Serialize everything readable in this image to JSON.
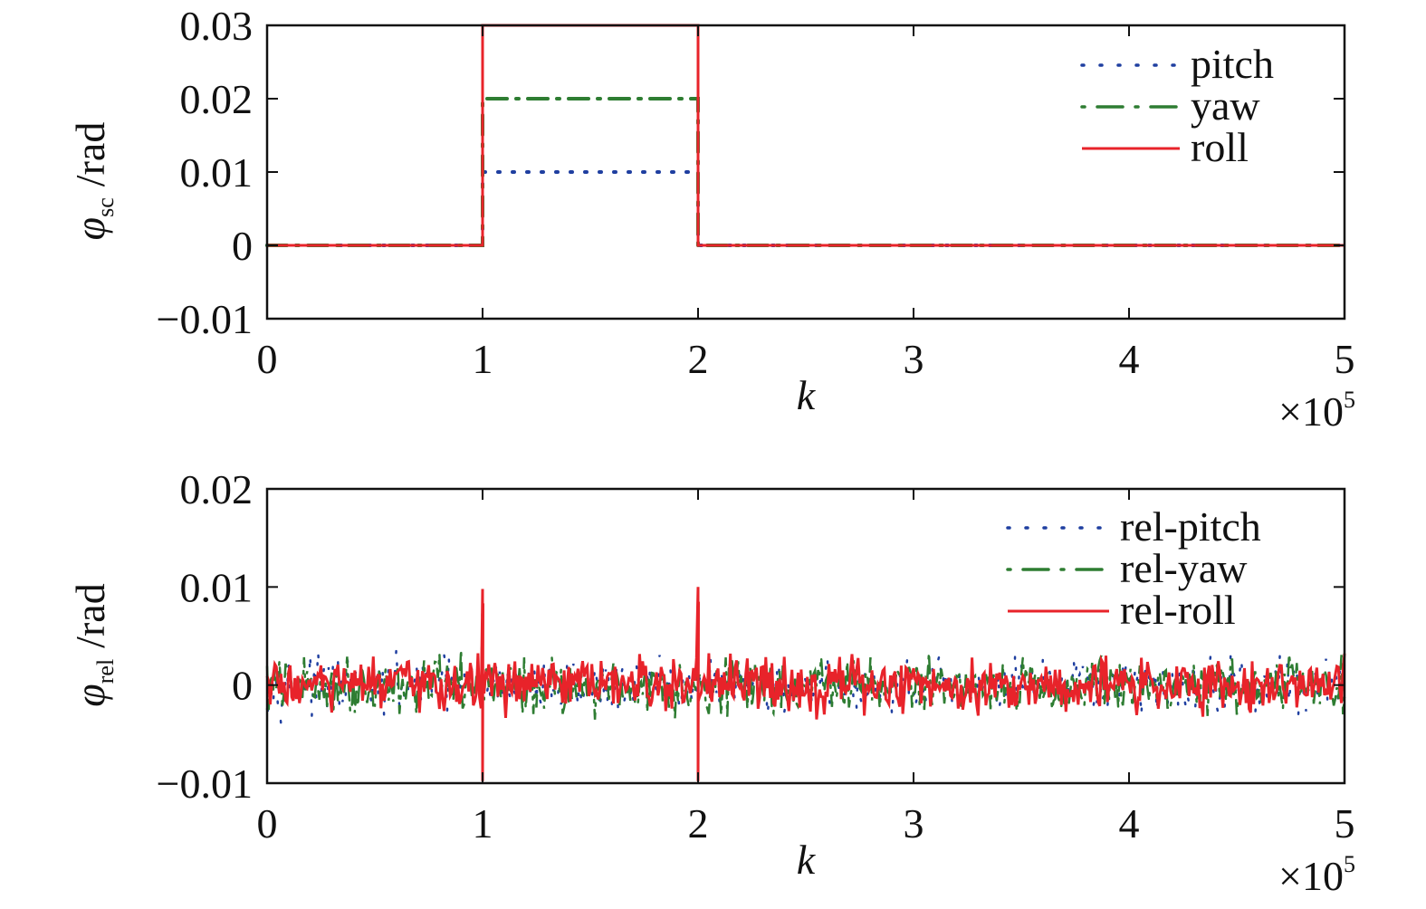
{
  "chart_data": [
    {
      "type": "line",
      "xlabel": "k",
      "x_multiplier": "×10",
      "x_multiplier_exp": "5",
      "ylabel_symbol": "φ",
      "ylabel_sub": "sc",
      "ylabel_unit": "/rad",
      "xlim": [
        0,
        5
      ],
      "ylim": [
        -0.01,
        0.03
      ],
      "xticks": [
        "0",
        "1",
        "2",
        "3",
        "4",
        "5"
      ],
      "yticks": [
        "−0.01",
        "0",
        "0.01",
        "0.02",
        "0.03"
      ],
      "ytick_values": [
        -0.01,
        0,
        0.01,
        0.02,
        0.03
      ],
      "legend_position": "top-right",
      "series": [
        {
          "name": "pitch",
          "style": "dotted",
          "color": "#1f3fa0",
          "x": [
            0,
            1,
            1,
            2,
            2,
            5
          ],
          "y": [
            0,
            0,
            0.01,
            0.01,
            0,
            0
          ]
        },
        {
          "name": "yaw",
          "style": "dashdot",
          "color": "#2e7d32",
          "x": [
            0,
            1,
            1,
            2,
            2,
            5
          ],
          "y": [
            0,
            0,
            0.02,
            0.02,
            0,
            0
          ]
        },
        {
          "name": "roll",
          "style": "solid",
          "color": "#e8232a",
          "x": [
            0,
            1,
            1,
            2,
            2,
            5
          ],
          "y": [
            0,
            0,
            0.03,
            0.03,
            0,
            0
          ]
        }
      ]
    },
    {
      "type": "line",
      "xlabel": "k",
      "x_multiplier": "×10",
      "x_multiplier_exp": "5",
      "ylabel_symbol": "φ",
      "ylabel_sub": "rel",
      "ylabel_unit": "/rad",
      "xlim": [
        0,
        5
      ],
      "ylim": [
        -0.01,
        0.02
      ],
      "xticks": [
        "0",
        "1",
        "2",
        "3",
        "4",
        "5"
      ],
      "yticks": [
        "−0.01",
        "0",
        "0.01",
        "0.02"
      ],
      "ytick_values": [
        -0.01,
        0,
        0.01,
        0.02
      ],
      "legend_position": "top-right",
      "noise_amplitude": 0.004,
      "spikes": [
        {
          "x": 1,
          "max": 0.0098,
          "min": -0.0098
        },
        {
          "x": 2,
          "max": 0.01,
          "min": -0.0098
        }
      ],
      "series": [
        {
          "name": "rel-pitch",
          "style": "dotted",
          "color": "#1f3fa0"
        },
        {
          "name": "rel-yaw",
          "style": "dashdot",
          "color": "#2e7d32"
        },
        {
          "name": "rel-roll",
          "style": "solid",
          "color": "#e8232a"
        }
      ]
    }
  ]
}
